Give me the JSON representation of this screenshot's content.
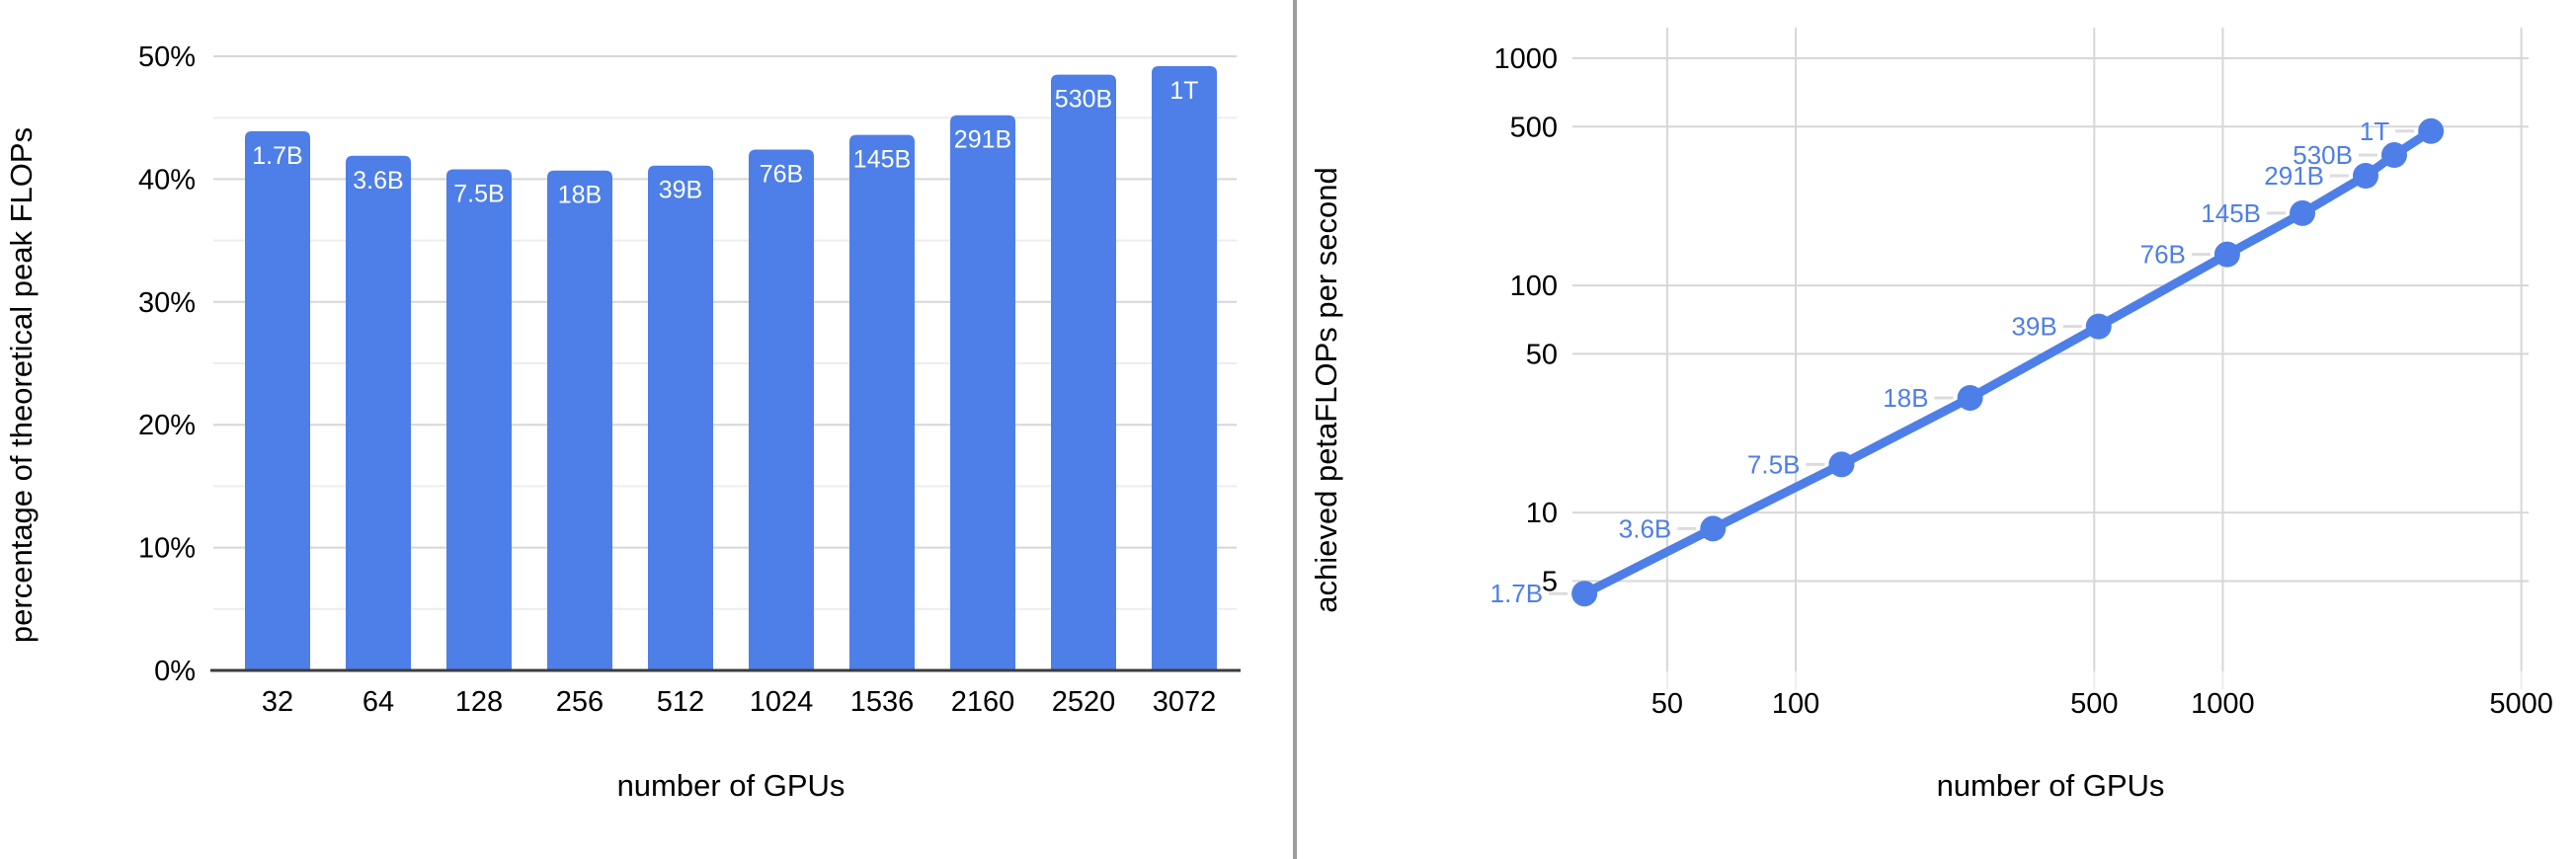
{
  "figure": {
    "background": "#ffffff",
    "divider_color": "#9e9e9e"
  },
  "colors": {
    "series_blue": "#4e7fe8",
    "bar_label_text": "#ffffff",
    "point_label_text": "#4e7fe8",
    "grid_major": "#d7d7d7",
    "grid_minor": "#ededed",
    "axis_baseline": "#3c3c3c",
    "tick_text": "#000000",
    "axis_title_text": "#000000",
    "leader_line": "#dcdcdc"
  },
  "chart_data": [
    {
      "type": "bar",
      "title": "",
      "xlabel": "number of GPUs",
      "ylabel": "percentage of theoretical peak FLOPs",
      "categories": [
        "32",
        "64",
        "128",
        "256",
        "512",
        "1024",
        "1536",
        "2160",
        "2520",
        "3072"
      ],
      "bar_labels": [
        "1.7B",
        "3.6B",
        "7.5B",
        "18B",
        "39B",
        "76B",
        "145B",
        "291B",
        "530B",
        "1T"
      ],
      "values": [
        43.9,
        41.9,
        40.8,
        40.7,
        41.1,
        42.4,
        43.6,
        45.2,
        48.5,
        49.2
      ],
      "ylim": [
        0,
        50
      ],
      "yticks": [
        0,
        10,
        20,
        30,
        40,
        50
      ],
      "ytick_labels": [
        "0%",
        "10%",
        "20%",
        "30%",
        "40%",
        "50%"
      ],
      "minor_yticks": [
        5,
        15,
        25,
        35,
        45
      ],
      "ytick_format": "percent",
      "grid": true,
      "legend": "none"
    },
    {
      "type": "line",
      "title": "",
      "xscale": "log",
      "yscale": "log",
      "xlabel": "number of GPUs",
      "ylabel": "achieved petaFLOPs per second",
      "x": [
        32,
        64,
        128,
        256,
        512,
        1024,
        1536,
        2160,
        2520,
        3072
      ],
      "values": [
        4.4,
        8.5,
        16.3,
        32,
        66,
        137,
        208,
        304,
        375,
        478
      ],
      "point_labels": [
        "1.7B",
        "3.6B",
        "7.5B",
        "18B",
        "39B",
        "76B",
        "145B",
        "291B",
        "530B",
        "1T"
      ],
      "xticks": [
        50,
        100,
        500,
        1000,
        5000
      ],
      "xtick_labels": [
        "50",
        "100",
        "500",
        "1000",
        "5000"
      ],
      "yticks": [
        5,
        10,
        50,
        100,
        500,
        1000
      ],
      "ytick_labels": [
        "5",
        "10",
        "50",
        "100",
        "500",
        "1000"
      ],
      "xlim": [
        30,
        5200
      ],
      "ylim": [
        2,
        1364
      ],
      "grid": true,
      "legend": "none",
      "marker": "circle"
    }
  ]
}
